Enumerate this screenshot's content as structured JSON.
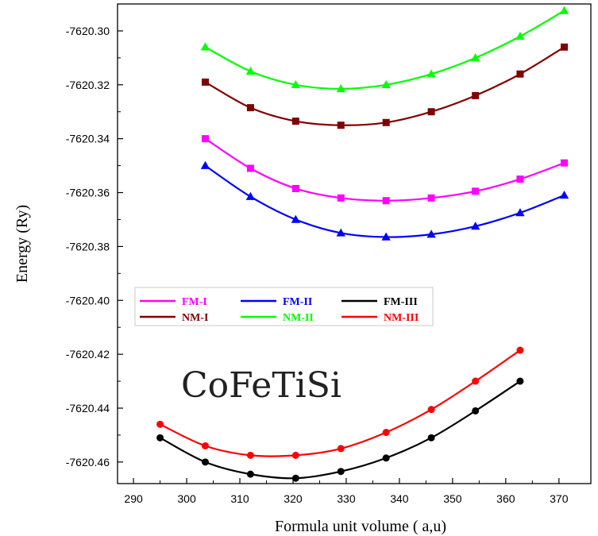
{
  "chart_data": {
    "type": "line",
    "xlabel": "Formula unit volume ( a,u)",
    "ylabel": "Energy (Ry)",
    "xlim": [
      287,
      376
    ],
    "ylim": [
      -7620.468,
      -7620.29
    ],
    "xticks": [
      290,
      300,
      310,
      320,
      330,
      340,
      350,
      360,
      370
    ],
    "yticks": [
      -7620.3,
      -7620.32,
      -7620.34,
      -7620.36,
      -7620.38,
      -7620.4,
      -7620.42,
      -7620.44,
      -7620.46
    ],
    "ytick_labels": [
      "-7620.30",
      "-7620.32",
      "-7620.34",
      "-7620.36",
      "-7620.38",
      "-7620.40",
      "-7620.42",
      "-7620.44",
      "-7620.46"
    ],
    "annotation": "CoFeTiSi",
    "legend_position": "center-left",
    "series": [
      {
        "name": "FM-I",
        "color": "#ff00ff",
        "marker": "square",
        "x": [
          303.5,
          312,
          320.5,
          329,
          337.5,
          346,
          354.3,
          362.7,
          371
        ],
        "y": [
          -7620.34,
          -7620.351,
          -7620.3585,
          -7620.362,
          -7620.363,
          -7620.362,
          -7620.3595,
          -7620.355,
          -7620.349
        ]
      },
      {
        "name": "FM-II",
        "color": "#0000ff",
        "marker": "triangle",
        "x": [
          303.5,
          312,
          320.5,
          329,
          337.5,
          346,
          354.3,
          362.7,
          371
        ],
        "y": [
          -7620.35,
          -7620.3615,
          -7620.37,
          -7620.375,
          -7620.3765,
          -7620.3755,
          -7620.3725,
          -7620.3675,
          -7620.361
        ]
      },
      {
        "name": "FM-III",
        "color": "#000000",
        "marker": "circle",
        "x": [
          295,
          303.5,
          312,
          320.5,
          329,
          337.5,
          346,
          354.3,
          362.7
        ],
        "y": [
          -7620.451,
          -7620.46,
          -7620.4645,
          -7620.466,
          -7620.4635,
          -7620.4585,
          -7620.451,
          -7620.441,
          -7620.43
        ]
      },
      {
        "name": "NM-I",
        "color": "#800000",
        "marker": "square",
        "x": [
          303.5,
          312,
          320.5,
          329,
          337.5,
          346,
          354.3,
          362.7,
          371
        ],
        "y": [
          -7620.319,
          -7620.3285,
          -7620.3335,
          -7620.335,
          -7620.334,
          -7620.33,
          -7620.324,
          -7620.316,
          -7620.306
        ]
      },
      {
        "name": "NM-II",
        "color": "#00ff00",
        "marker": "triangle",
        "x": [
          303.5,
          312,
          320.5,
          329,
          337.5,
          346,
          354.3,
          362.7,
          371
        ],
        "y": [
          -7620.306,
          -7620.315,
          -7620.32,
          -7620.3215,
          -7620.32,
          -7620.316,
          -7620.31,
          -7620.302,
          -7620.2925
        ]
      },
      {
        "name": "NM-III",
        "color": "#ff0000",
        "marker": "circle",
        "x": [
          295,
          303.5,
          312,
          320.5,
          329,
          337.5,
          346,
          354.3,
          362.7
        ],
        "y": [
          -7620.446,
          -7620.454,
          -7620.4575,
          -7620.4575,
          -7620.455,
          -7620.449,
          -7620.4405,
          -7620.43,
          -7620.4185
        ]
      }
    ],
    "legend_order": [
      "FM-I",
      "FM-II",
      "FM-III",
      "NM-I",
      "NM-II",
      "NM-III"
    ]
  }
}
